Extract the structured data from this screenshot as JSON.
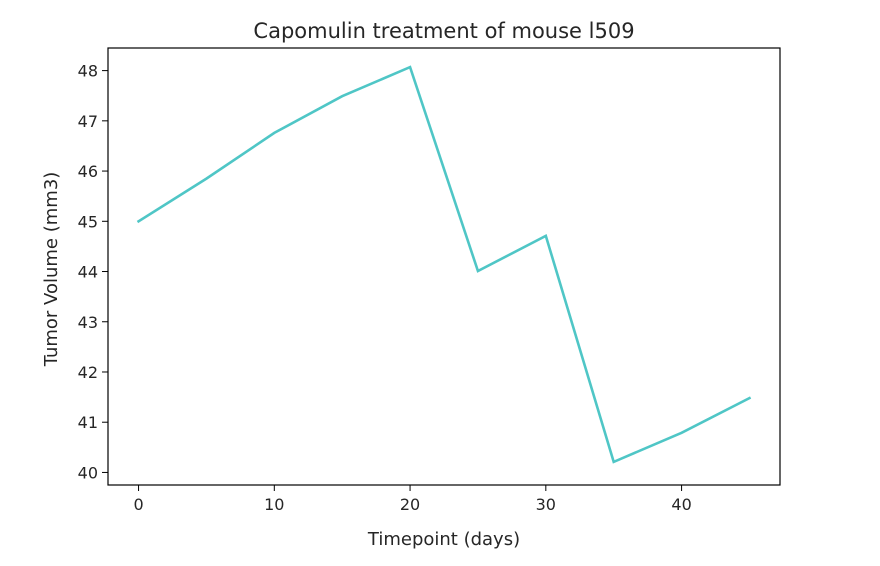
{
  "chart_data": {
    "type": "line",
    "title": "Capomulin treatment of mouse l509",
    "xlabel": "Timepoint (days)",
    "ylabel": "Tumor Volume (mm3)",
    "xlim": [
      -2.25,
      47.25
    ],
    "ylim": [
      39.75,
      48.45
    ],
    "xticks": [
      0,
      10,
      20,
      30,
      40
    ],
    "yticks": [
      40,
      41,
      42,
      43,
      44,
      45,
      46,
      47,
      48
    ],
    "grid": false,
    "series": [
      {
        "name": "Tumor Volume (mm3)",
        "color": "#4fc6c6",
        "x": [
          0,
          5,
          10,
          15,
          20,
          25,
          30,
          35,
          40,
          45
        ],
        "y": [
          45.0,
          45.85,
          46.76,
          47.49,
          48.07,
          44.01,
          44.71,
          40.21,
          40.79,
          41.48
        ]
      }
    ]
  }
}
